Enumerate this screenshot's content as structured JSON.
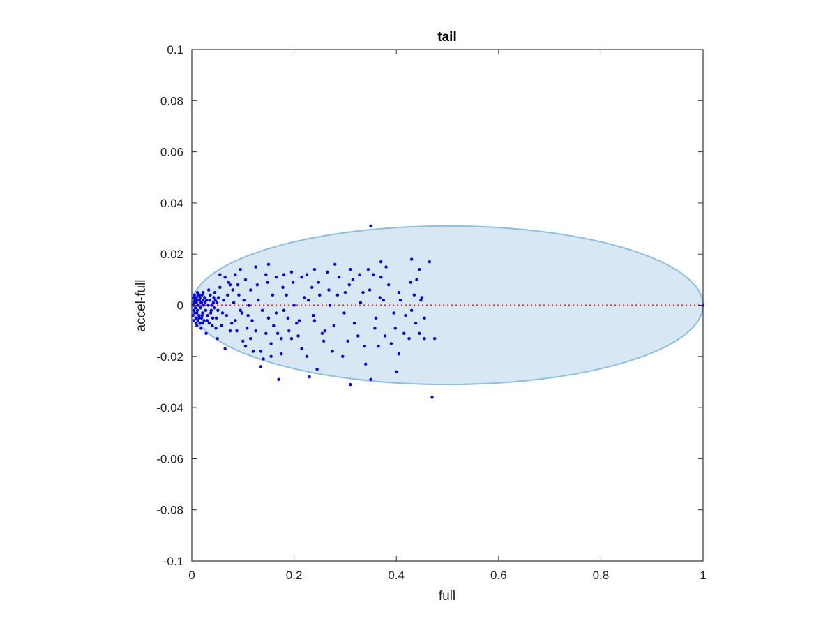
{
  "chart_data": {
    "type": "scatter",
    "title": "tail",
    "xlabel": "full",
    "ylabel": "accel-full",
    "xlim": [
      0,
      1
    ],
    "ylim": [
      -0.1,
      0.1
    ],
    "xticks": [
      0,
      0.2,
      0.4,
      0.6,
      0.8,
      1
    ],
    "xtick_labels": [
      "0",
      "0.2",
      "0.4",
      "0.6",
      "0.8",
      "1"
    ],
    "yticks": [
      0.1,
      0.08,
      0.06,
      0.04,
      0.02,
      0,
      -0.02,
      -0.04,
      -0.06,
      -0.08,
      -0.1
    ],
    "ytick_labels": [
      "0.1",
      "0.08",
      "0.06",
      "0.04",
      "0.02",
      "0",
      "-0.02",
      "-0.04",
      "-0.06",
      "-0.08",
      "-0.1"
    ],
    "grid": false,
    "colors": {
      "points": "#0000ee",
      "ellipse_fill": "#d7e7f3",
      "ellipse_edge": "#8fbfdc",
      "reference_line": "#ee2222",
      "axes": "#333333"
    },
    "ellipse": {
      "center_x": 0.5,
      "center_y": 0.0,
      "width": 1.0,
      "height": 0.062
    },
    "reference_line": {
      "y": 0,
      "x_range": [
        0,
        1
      ],
      "style": "dotted"
    },
    "series": [
      {
        "values": [
          [
            0.35,
            0.031
          ],
          [
            0.47,
            -0.036
          ],
          [
            0.43,
            0.018
          ],
          [
            0.465,
            0.017
          ],
          [
            0.37,
            0.017
          ],
          [
            0.28,
            0.016
          ],
          [
            0.15,
            0.016
          ],
          [
            0.125,
            0.015
          ],
          [
            0.24,
            0.014
          ],
          [
            0.345,
            0.014
          ],
          [
            0.095,
            0.014
          ],
          [
            0.445,
            0.014
          ],
          [
            0.38,
            0.015
          ],
          [
            0.31,
            0.014
          ],
          [
            0.215,
            0.011
          ],
          [
            0.18,
            0.012
          ],
          [
            0.475,
            -0.013
          ],
          [
            0.455,
            -0.013
          ],
          [
            0.4,
            -0.026
          ],
          [
            0.34,
            -0.023
          ],
          [
            0.35,
            -0.029
          ],
          [
            0.31,
            -0.031
          ],
          [
            0.415,
            -0.011
          ],
          [
            0.405,
            0.005
          ],
          [
            0.43,
            -0.002
          ],
          [
            0.44,
            0.01
          ],
          [
            0.45,
            0.003
          ],
          [
            0.455,
            -0.005
          ],
          [
            0.36,
            -0.005
          ],
          [
            0.37,
            0.011
          ],
          [
            0.39,
            -0.015
          ],
          [
            0.385,
            0.008
          ],
          [
            0.33,
            0.001
          ],
          [
            0.325,
            -0.012
          ],
          [
            0.3,
            0.005
          ],
          [
            0.295,
            -0.02
          ],
          [
            0.27,
            0.0
          ],
          [
            0.26,
            -0.01
          ],
          [
            0.25,
            0.004
          ],
          [
            0.245,
            -0.025
          ],
          [
            0.23,
            -0.028
          ],
          [
            0.235,
            0.007
          ],
          [
            0.24,
            -0.006
          ],
          [
            0.225,
            -0.02
          ],
          [
            0.22,
            0.003
          ],
          [
            0.21,
            -0.006
          ],
          [
            0.2,
            0.0
          ],
          [
            0.195,
            -0.013
          ],
          [
            0.19,
            -0.01
          ],
          [
            0.185,
            0.004
          ],
          [
            0.18,
            -0.002
          ],
          [
            0.175,
            -0.013
          ],
          [
            0.17,
            -0.029
          ],
          [
            0.165,
            -0.003
          ],
          [
            0.16,
            -0.008
          ],
          [
            0.155,
            -0.02
          ],
          [
            0.15,
            -0.005
          ],
          [
            0.145,
            -0.011
          ],
          [
            0.14,
            -0.021
          ],
          [
            0.135,
            -0.024
          ],
          [
            0.13,
            0.002
          ],
          [
            0.125,
            -0.01
          ],
          [
            0.12,
            -0.018
          ],
          [
            0.115,
            0.006
          ],
          [
            0.11,
            -0.004
          ],
          [
            0.105,
            0.01
          ],
          [
            0.1,
            -0.014
          ],
          [
            0.095,
            -0.002
          ],
          [
            0.09,
            0.008
          ],
          [
            0.085,
            -0.006
          ],
          [
            0.08,
            0.006
          ],
          [
            0.075,
            -0.01
          ],
          [
            0.07,
            0.004
          ],
          [
            0.065,
            -0.017
          ],
          [
            0.06,
            -0.003
          ],
          [
            0.055,
            0.007
          ],
          [
            0.05,
            -0.013
          ],
          [
            0.045,
            0.005
          ],
          [
            0.04,
            -0.008
          ],
          [
            0.035,
            0.002
          ],
          [
            0.03,
            -0.006
          ],
          [
            0.025,
            0.003
          ],
          [
            0.02,
            -0.004
          ],
          [
            0.015,
            0.002
          ],
          [
            0.01,
            -0.003
          ],
          [
            0.005,
            0.001
          ],
          [
            0.008,
            -0.007
          ],
          [
            0.012,
            0.004
          ],
          [
            0.018,
            -0.009
          ],
          [
            0.022,
            0.005
          ],
          [
            0.028,
            -0.011
          ],
          [
            0.033,
            0.006
          ],
          [
            0.038,
            -0.002
          ],
          [
            0.042,
            0.001
          ],
          [
            0.048,
            -0.005
          ],
          [
            0.052,
            0.003
          ],
          [
            0.058,
            -0.008
          ],
          [
            0.062,
            0.002
          ],
          [
            0.068,
            -0.004
          ],
          [
            0.072,
            0.009
          ],
          [
            0.078,
            -0.007
          ],
          [
            0.082,
            0.001
          ],
          [
            0.088,
            -0.01
          ],
          [
            0.092,
            0.004
          ],
          [
            0.098,
            -0.003
          ],
          [
            0.102,
            0.002
          ],
          [
            0.108,
            -0.009
          ],
          [
            0.112,
            0.0
          ],
          [
            0.118,
            -0.006
          ],
          [
            0.128,
            0.008
          ],
          [
            0.138,
            -0.002
          ],
          [
            0.148,
            0.009
          ],
          [
            0.158,
            0.004
          ],
          [
            0.168,
            -0.011
          ],
          [
            0.178,
            0.007
          ],
          [
            0.188,
            -0.005
          ],
          [
            0.198,
            0.009
          ],
          [
            0.208,
            -0.012
          ],
          [
            0.228,
            0.002
          ],
          [
            0.238,
            -0.004
          ],
          [
            0.248,
            0.009
          ],
          [
            0.258,
            -0.014
          ],
          [
            0.268,
            0.006
          ],
          [
            0.278,
            -0.008
          ],
          [
            0.288,
            0.011
          ],
          [
            0.298,
            -0.003
          ],
          [
            0.308,
            0.008
          ],
          [
            0.318,
            -0.007
          ],
          [
            0.328,
            0.012
          ],
          [
            0.338,
            -0.016
          ],
          [
            0.348,
            0.006
          ],
          [
            0.358,
            -0.009
          ],
          [
            0.368,
            0.003
          ],
          [
            0.378,
            -0.012
          ],
          [
            0.398,
            -0.009
          ],
          [
            0.408,
            0.002
          ],
          [
            0.418,
            -0.004
          ],
          [
            0.428,
            0.009
          ],
          [
            0.438,
            -0.007
          ],
          [
            0.448,
            0.002
          ],
          [
            0.003,
            0.0
          ],
          [
            0.004,
            -0.002
          ],
          [
            0.006,
            0.002
          ],
          [
            0.007,
            -0.001
          ],
          [
            0.009,
            0.001
          ],
          [
            0.011,
            -0.002
          ],
          [
            0.013,
            0.0
          ],
          [
            0.014,
            -0.005
          ],
          [
            0.016,
            0.003
          ],
          [
            0.017,
            -0.001
          ],
          [
            0.019,
            0.001
          ],
          [
            0.021,
            -0.003
          ],
          [
            0.023,
            0.0
          ],
          [
            0.024,
            -0.006
          ],
          [
            0.026,
            0.001
          ],
          [
            0.027,
            -0.002
          ],
          [
            0.029,
            0.002
          ],
          [
            0.031,
            -0.004
          ],
          [
            0.032,
            0.0
          ],
          [
            0.034,
            -0.007
          ],
          [
            0.036,
            0.004
          ],
          [
            0.037,
            -0.003
          ],
          [
            0.039,
            0.0
          ],
          [
            0.041,
            -0.005
          ],
          [
            0.043,
            0.003
          ],
          [
            0.044,
            -0.001
          ],
          [
            0.046,
            0.002
          ],
          [
            0.047,
            -0.009
          ],
          [
            0.049,
            0.001
          ],
          [
            0.051,
            -0.002
          ],
          [
            0.002,
            -0.004
          ],
          [
            0.003,
            0.003
          ],
          [
            0.004,
            -0.006
          ],
          [
            0.005,
            0.004
          ],
          [
            0.006,
            -0.003
          ],
          [
            0.007,
            0.002
          ],
          [
            0.008,
            -0.005
          ],
          [
            0.009,
            0.003
          ],
          [
            0.01,
            -0.008
          ],
          [
            0.011,
            0.005
          ],
          [
            0.012,
            -0.006
          ],
          [
            0.013,
            0.002
          ],
          [
            0.014,
            -0.004
          ],
          [
            0.015,
            0.004
          ],
          [
            0.016,
            -0.007
          ],
          [
            0.018,
            0.001
          ],
          [
            0.019,
            -0.005
          ],
          [
            0.02,
            0.004
          ],
          [
            0.021,
            -0.007
          ],
          [
            0.022,
            0.002
          ],
          [
            0.055,
            0.012
          ],
          [
            0.065,
            0.011
          ],
          [
            0.075,
            0.008
          ],
          [
            0.085,
            0.012
          ],
          [
            0.105,
            -0.016
          ],
          [
            0.115,
            -0.013
          ],
          [
            0.135,
            -0.018
          ],
          [
            0.145,
            0.012
          ],
          [
            0.155,
            -0.015
          ],
          [
            0.165,
            0.011
          ],
          [
            0.175,
            -0.019
          ],
          [
            0.195,
            0.013
          ],
          [
            0.205,
            -0.007
          ],
          [
            0.215,
            -0.017
          ],
          [
            0.225,
            0.012
          ],
          [
            0.255,
            -0.011
          ],
          [
            0.265,
            0.013
          ],
          [
            0.275,
            -0.018
          ],
          [
            0.285,
            0.004
          ],
          [
            0.305,
            -0.014
          ],
          [
            0.315,
            0.01
          ],
          [
            0.335,
            0.005
          ],
          [
            0.355,
            0.012
          ],
          [
            0.365,
            -0.016
          ],
          [
            0.375,
            0.002
          ],
          [
            0.395,
            -0.003
          ],
          [
            0.405,
            -0.019
          ],
          [
            0.425,
            -0.013
          ],
          [
            0.435,
            0.004
          ],
          [
            0.445,
            -0.011
          ]
        ]
      }
    ]
  }
}
